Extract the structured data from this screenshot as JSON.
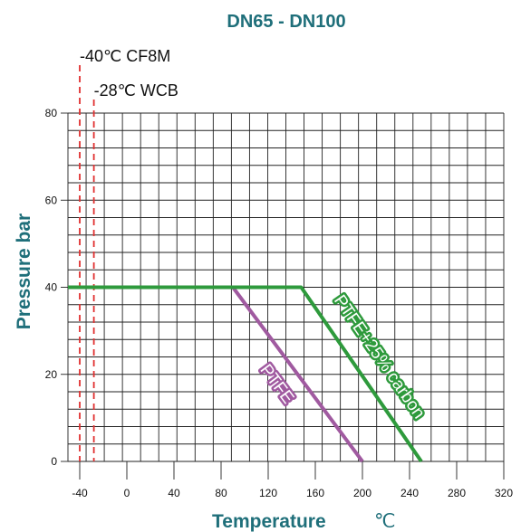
{
  "chart_data": {
    "type": "line",
    "title": "DN65 - DN100",
    "xlabel": "Temperature",
    "xlabel_unit": "℃",
    "ylabel": "Pressure   bar",
    "xlim": [
      -50,
      320
    ],
    "ylim": [
      0,
      80
    ],
    "x_ticks": [
      -40,
      0,
      40,
      80,
      120,
      160,
      200,
      240,
      280,
      320
    ],
    "y_ticks": [
      0,
      20,
      40,
      60,
      80
    ],
    "grid": true,
    "series": [
      {
        "name": "PTFE",
        "color": "#a05aa0",
        "x": [
          -50,
          90,
          200
        ],
        "y": [
          40,
          40,
          0
        ]
      },
      {
        "name": "PTFE+25% carbon",
        "color": "#2e9a3c",
        "x": [
          -50,
          148,
          250
        ],
        "y": [
          40,
          40,
          0
        ]
      }
    ],
    "reference_lines": [
      {
        "x": -40,
        "label": "-40℃ CF8M",
        "color": "#e03030",
        "style": "dashed"
      },
      {
        "x": -28,
        "label": "-28℃ WCB",
        "color": "#e03030",
        "style": "dashed"
      }
    ]
  }
}
